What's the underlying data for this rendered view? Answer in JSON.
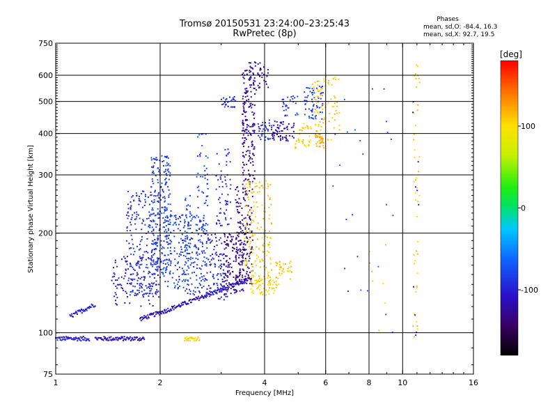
{
  "chart_data": {
    "type": "scatter",
    "title_line1": "Tromsø 20150531 23:24:00–23:25:43",
    "title_line2": "RwPretec (8p)",
    "info": {
      "heading": "Phases",
      "line_o": "mean, sd,O: -84.4, 16.3",
      "line_x": "mean, sd,X:  92.7, 19.5"
    },
    "xlabel": "Frequency [MHz]",
    "ylabel": "Stationary phase Virtual Height [km]",
    "x_scale": "log",
    "y_scale": "log",
    "xlim": [
      1,
      16
    ],
    "ylim": [
      75,
      750
    ],
    "x_ticks": [
      1,
      2,
      4,
      6,
      8,
      10,
      16
    ],
    "x_tick_labels": [
      "1",
      "2",
      "4",
      "6",
      "8",
      "10",
      "16"
    ],
    "y_ticks": [
      75,
      100,
      200,
      300,
      400,
      500,
      600,
      750
    ],
    "y_tick_labels": [
      "75",
      "100",
      "200",
      "300",
      "400",
      "500",
      "600",
      "750"
    ],
    "x_grid_lines": [
      2,
      4,
      6,
      8,
      10
    ],
    "y_grid_lines": [
      100,
      200,
      300,
      400,
      500,
      600
    ],
    "grid": true,
    "colorbar": {
      "label": "[deg]",
      "range": [
        -180,
        180
      ],
      "tick_values": [
        100,
        0,
        -100
      ],
      "tick_labels": [
        "100",
        "0",
        "-100"
      ]
    },
    "clusters": [
      {
        "x": [
          1.0,
          1.25
        ],
        "y": [
          96,
          96
        ],
        "phase": -100,
        "kind": "hline"
      },
      {
        "x": [
          1.3,
          1.8
        ],
        "y": [
          96,
          96
        ],
        "phase": -112,
        "kind": "hline"
      },
      {
        "x": [
          1.75,
          2.05
        ],
        "y": [
          110,
          116
        ],
        "phase": -112,
        "kind": "hline"
      },
      {
        "x": [
          2.05,
          3.6
        ],
        "y": [
          116,
          145
        ],
        "phase": -112,
        "kind": "hline"
      },
      {
        "x": [
          1.1,
          1.3
        ],
        "y": [
          112,
          122
        ],
        "phase": -98,
        "kind": "hline"
      },
      {
        "x": [
          2.35,
          2.6
        ],
        "y": [
          96,
          96
        ],
        "phase": 106,
        "kind": "hline"
      },
      {
        "x": [
          1.45,
          2.0
        ],
        "y": [
          120,
          170
        ],
        "n": 120,
        "phase": -105
      },
      {
        "x": [
          1.6,
          2.0
        ],
        "y": [
          130,
          270
        ],
        "n": 220,
        "phase": -90
      },
      {
        "x": [
          1.88,
          2.15
        ],
        "y": [
          150,
          345
        ],
        "n": 220,
        "phase": -82
      },
      {
        "x": [
          2.05,
          2.7
        ],
        "y": [
          130,
          230
        ],
        "n": 230,
        "phase": -85
      },
      {
        "x": [
          2.35,
          2.45
        ],
        "y": [
          150,
          260
        ],
        "n": 40,
        "phase": -78
      },
      {
        "x": [
          2.55,
          2.75
        ],
        "y": [
          160,
          400
        ],
        "n": 70,
        "phase": -80
      },
      {
        "x": [
          2.7,
          3.15
        ],
        "y": [
          125,
          200
        ],
        "n": 120,
        "phase": -96
      },
      {
        "x": [
          2.9,
          3.2
        ],
        "y": [
          210,
          360
        ],
        "n": 60,
        "phase": -96
      },
      {
        "x": [
          3.0,
          3.3
        ],
        "y": [
          480,
          520
        ],
        "n": 30,
        "phase": -92
      },
      {
        "x": [
          3.05,
          3.55
        ],
        "y": [
          130,
          200
        ],
        "n": 130,
        "phase": -130
      },
      {
        "x": [
          3.3,
          3.7
        ],
        "y": [
          140,
          280
        ],
        "n": 160,
        "phase": -128
      },
      {
        "x": [
          3.45,
          3.75
        ],
        "y": [
          280,
          640
        ],
        "n": 180,
        "phase": -125
      },
      {
        "x": [
          3.6,
          4.1
        ],
        "y": [
          540,
          660
        ],
        "n": 40,
        "phase": -118
      },
      {
        "x": [
          3.5,
          4.2
        ],
        "y": [
          140,
          290
        ],
        "n": 160,
        "phase": 108
      },
      {
        "x": [
          3.6,
          4.4
        ],
        "y": [
          130,
          150
        ],
        "n": 60,
        "phase": 100
      },
      {
        "x": [
          4.3,
          4.8
        ],
        "y": [
          145,
          165
        ],
        "n": 30,
        "phase": 110
      },
      {
        "x": [
          3.8,
          4.2
        ],
        "y": [
          380,
          440
        ],
        "n": 35,
        "phase": -90
      },
      {
        "x": [
          4.2,
          4.9
        ],
        "y": [
          380,
          440
        ],
        "n": 60,
        "phase": -115
      },
      {
        "x": [
          4.5,
          5.0
        ],
        "y": [
          450,
          520
        ],
        "n": 30,
        "phase": -88
      },
      {
        "x": [
          4.9,
          5.6
        ],
        "y": [
          360,
          430
        ],
        "n": 40,
        "phase": 110
      },
      {
        "x": [
          5.2,
          5.9
        ],
        "y": [
          440,
          560
        ],
        "n": 60,
        "phase": -85
      },
      {
        "x": [
          5.5,
          6.6
        ],
        "y": [
          380,
          600
        ],
        "n": 80,
        "phase": 110
      },
      {
        "x": [
          5.6,
          6.0
        ],
        "y": [
          360,
          400
        ],
        "n": 30,
        "phase": 120
      },
      {
        "x": [
          10.7,
          11.2
        ],
        "y": [
          95,
          650
        ],
        "n": 45,
        "phase": 105
      },
      {
        "x": [
          10.7,
          11.2
        ],
        "y": [
          95,
          650
        ],
        "n": 10,
        "phase": -112
      },
      {
        "x": [
          6.1,
          9.5
        ],
        "y": [
          100,
          560
        ],
        "n": 25,
        "phase": -70
      },
      {
        "x": [
          7.8,
          9.0
        ],
        "y": [
          100,
          200
        ],
        "n": 8,
        "phase": 105
      }
    ]
  }
}
